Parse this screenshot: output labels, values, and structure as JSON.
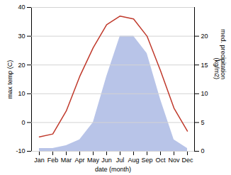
{
  "chart_data": {
    "type": "line",
    "categories": [
      "Jan",
      "Feb",
      "Mar",
      "Apr",
      "May",
      "Jun",
      "Jul",
      "Aug",
      "Sep",
      "Oct",
      "Nov",
      "Dec"
    ],
    "xlabel": "date (month)",
    "ylabel": "max temp (C)",
    "y2label": "med. precipitation\n(kg/m2)",
    "ylim": [
      -10,
      40
    ],
    "yticks": [
      -10,
      0,
      10,
      20,
      30,
      40
    ],
    "y2lim": [
      0,
      25
    ],
    "y2ticks": [
      0,
      5,
      10,
      15,
      20
    ],
    "grid": true,
    "series": [
      {
        "type": "area",
        "axis": "y2",
        "color": "#b8c4e8",
        "values": [
          0.5,
          0.5,
          1,
          2,
          5,
          13,
          20,
          20,
          17,
          9,
          2,
          0.5
        ]
      },
      {
        "type": "line",
        "color": "#c0392b",
        "values": [
          -5,
          -4,
          4,
          16,
          26,
          34,
          37,
          36,
          30,
          18,
          5,
          -3
        ]
      }
    ]
  }
}
